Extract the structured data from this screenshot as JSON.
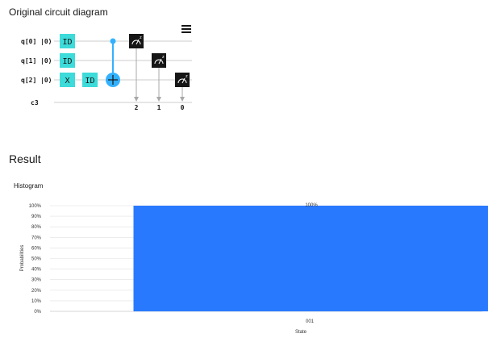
{
  "sections": {
    "circuit_title": "Original circuit diagram",
    "result_title": "Result",
    "histogram_label": "Histogram"
  },
  "circuit": {
    "qubits": [
      "q[0]",
      "q[1]",
      "q[2]"
    ],
    "ket": "|0⟩",
    "classical": "c3",
    "gates": {
      "q0": [
        "ID"
      ],
      "q1": [
        "ID"
      ],
      "q2": [
        "X",
        "ID"
      ]
    },
    "measure_targets": [
      "2",
      "1",
      "0"
    ],
    "colors": {
      "id_gate": "#3ddbd9",
      "cnot": "#33b1ff",
      "measure": "#161616",
      "wire": "#cccccc"
    }
  },
  "chart_data": {
    "type": "bar",
    "categories": [
      "001"
    ],
    "values": [
      100
    ],
    "data_labels": [
      "100%"
    ],
    "title": "",
    "xlabel": "State",
    "ylabel": "Probabilities",
    "ylim": [
      0,
      100
    ],
    "yticks": [
      "0%",
      "10%",
      "20%",
      "30%",
      "40%",
      "50%",
      "60%",
      "70%",
      "80%",
      "90%",
      "100%"
    ],
    "grid": true,
    "bar_color": "#2979ff"
  }
}
